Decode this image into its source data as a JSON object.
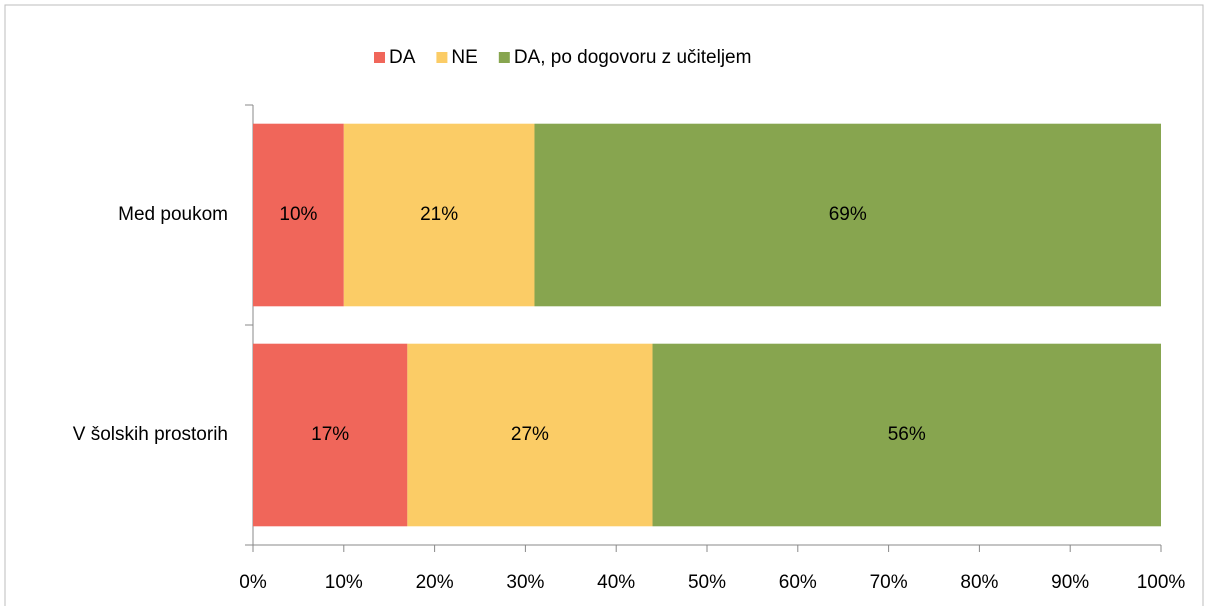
{
  "chart_data": {
    "type": "stacked-barh",
    "categories": [
      "Med poukom",
      "V šolskih prostorih"
    ],
    "series": [
      {
        "name": "DA",
        "color": "#f0665a",
        "values": [
          10,
          17
        ],
        "value_labels": [
          "10%",
          "17%"
        ]
      },
      {
        "name": "NE",
        "color": "#fbcc66",
        "values": [
          21,
          27
        ],
        "value_labels": [
          "21%",
          "27%"
        ]
      },
      {
        "name": "DA, po dogovoru z učiteljem",
        "color": "#87a54f",
        "values": [
          69,
          56
        ],
        "value_labels": [
          "69%",
          "56%"
        ]
      }
    ],
    "xlim": [
      0,
      100
    ],
    "xticks": [
      {
        "value": 0,
        "label": "0%"
      },
      {
        "value": 10,
        "label": "10%"
      },
      {
        "value": 20,
        "label": "20%"
      },
      {
        "value": 30,
        "label": "30%"
      },
      {
        "value": 40,
        "label": "40%"
      },
      {
        "value": 50,
        "label": "50%"
      },
      {
        "value": 60,
        "label": "60%"
      },
      {
        "value": 70,
        "label": "70%"
      },
      {
        "value": 80,
        "label": "80%"
      },
      {
        "value": 90,
        "label": "90%"
      },
      {
        "value": 100,
        "label": "100%"
      }
    ],
    "legend": "top"
  }
}
